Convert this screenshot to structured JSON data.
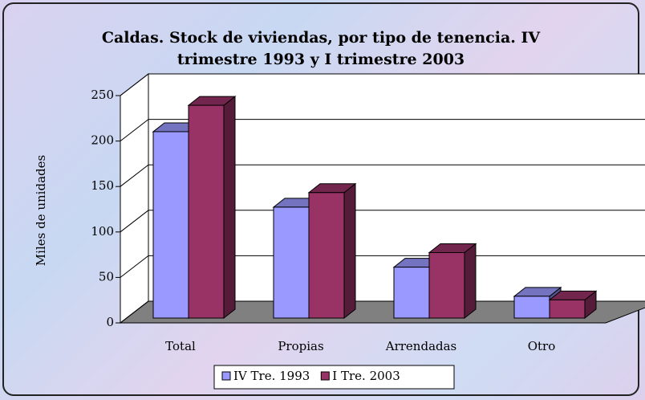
{
  "chart_data": {
    "type": "bar",
    "title": "Caldas. Stock de viviendas, por tipo de tenencia. IV trimestre 1993 y I trimestre 2003",
    "y_label": "Miles de unidades",
    "categories": [
      "Total",
      "Propias",
      "Arrendadas",
      "Otro"
    ],
    "series": [
      {
        "name": "IV Tre. 1993",
        "color": "#9999ff",
        "values": [
          205,
          122,
          56,
          24
        ]
      },
      {
        "name": "I Tre. 2003",
        "color": "#993366",
        "values": [
          234,
          138,
          72,
          20
        ]
      }
    ],
    "ylim": [
      0,
      250
    ],
    "yticks": [
      0,
      50,
      100,
      150,
      200,
      250
    ],
    "grid": true,
    "legend": "bottom"
  }
}
